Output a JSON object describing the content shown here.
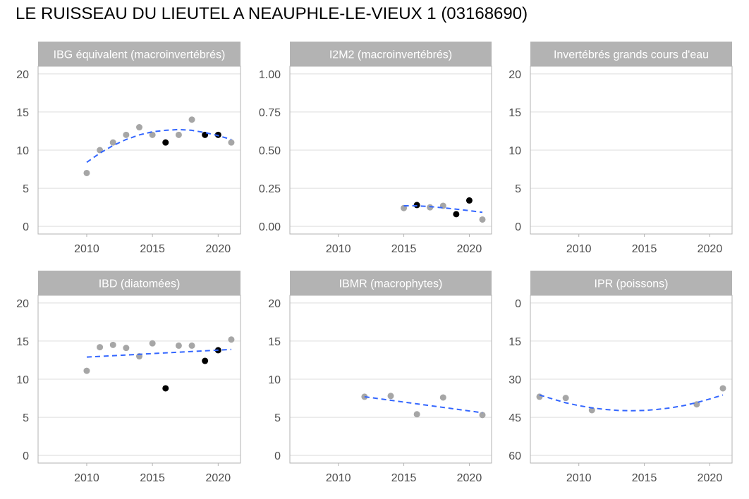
{
  "title": "LE RUISSEAU DU LIEUTEL A NEAUPHLE-LE-VIEUX 1 (03168690)",
  "colors": {
    "point_default": "#a6a6a6",
    "point_highlight": "#000000",
    "trend": "#3366ff",
    "strip": "#b3b3b3",
    "grid": "#dedede",
    "border": "#b3b3b3"
  },
  "chart_data": [
    {
      "type": "scatter",
      "title": "IBG équivalent (macroinvertébrés)",
      "xlim": [
        2006.3,
        2021.7
      ],
      "ylim": [
        -1,
        21
      ],
      "x_ticks": [
        2010,
        2015,
        2020
      ],
      "y_ticks": [
        0,
        5,
        10,
        15,
        20
      ],
      "y_tick_labels": [
        "0",
        "5",
        "10",
        "15",
        "20"
      ],
      "series": [
        {
          "role": "grey",
          "points": [
            [
              2010,
              7
            ],
            [
              2011,
              10
            ],
            [
              2012,
              11
            ],
            [
              2013,
              12
            ],
            [
              2014,
              13
            ],
            [
              2015,
              12
            ],
            [
              2017,
              12
            ],
            [
              2018,
              14
            ],
            [
              2021,
              11
            ]
          ]
        },
        {
          "role": "black",
          "points": [
            [
              2016,
              11
            ],
            [
              2019,
              12
            ],
            [
              2020,
              12
            ]
          ]
        }
      ],
      "trend": [
        [
          2010,
          8.4
        ],
        [
          2011,
          9.6
        ],
        [
          2012,
          10.6
        ],
        [
          2013,
          11.4
        ],
        [
          2014,
          12.0
        ],
        [
          2015,
          12.4
        ],
        [
          2016,
          12.6
        ],
        [
          2017,
          12.7
        ],
        [
          2018,
          12.6
        ],
        [
          2019,
          12.3
        ],
        [
          2020,
          11.9
        ],
        [
          2021,
          11.4
        ]
      ]
    },
    {
      "type": "scatter",
      "title": "I2M2 (macroinvertébrés)",
      "xlim": [
        2006.3,
        2021.7
      ],
      "ylim": [
        -0.05,
        1.05
      ],
      "x_ticks": [
        2010,
        2015,
        2020
      ],
      "y_ticks": [
        0,
        0.25,
        0.5,
        0.75,
        1
      ],
      "y_tick_labels": [
        "0.00",
        "0.25",
        "0.50",
        "0.75",
        "1.00"
      ],
      "series": [
        {
          "role": "grey",
          "points": [
            [
              2015,
              0.12
            ],
            [
              2017,
              0.125
            ],
            [
              2018,
              0.135
            ],
            [
              2021,
              0.045
            ]
          ]
        },
        {
          "role": "black",
          "points": [
            [
              2016,
              0.14
            ],
            [
              2019,
              0.08
            ],
            [
              2020,
              0.17
            ]
          ]
        }
      ],
      "trend": [
        [
          2015,
          0.135
        ],
        [
          2016,
          0.135
        ],
        [
          2017,
          0.13
        ],
        [
          2018,
          0.122
        ],
        [
          2019,
          0.113
        ],
        [
          2020,
          0.103
        ],
        [
          2021,
          0.092
        ]
      ]
    },
    {
      "type": "scatter",
      "title": "Invertébrés grands cours d'eau",
      "xlim": [
        2006.3,
        2021.7
      ],
      "ylim": [
        -1,
        21
      ],
      "x_ticks": [
        2010,
        2015,
        2020
      ],
      "y_ticks": [
        0,
        5,
        10,
        15,
        20
      ],
      "y_tick_labels": [
        "0",
        "5",
        "10",
        "15",
        "20"
      ],
      "series": [],
      "trend": []
    },
    {
      "type": "scatter",
      "title": "IBD (diatomées)",
      "xlim": [
        2006.3,
        2021.7
      ],
      "ylim": [
        -1,
        21
      ],
      "x_ticks": [
        2010,
        2015,
        2020
      ],
      "y_ticks": [
        0,
        5,
        10,
        15,
        20
      ],
      "y_tick_labels": [
        "0",
        "5",
        "10",
        "15",
        "20"
      ],
      "series": [
        {
          "role": "grey",
          "points": [
            [
              2010,
              11.1
            ],
            [
              2011,
              14.2
            ],
            [
              2012,
              14.5
            ],
            [
              2013,
              14.1
            ],
            [
              2014,
              13.0
            ],
            [
              2015,
              14.7
            ],
            [
              2017,
              14.4
            ],
            [
              2018,
              14.4
            ],
            [
              2021,
              15.2
            ]
          ]
        },
        {
          "role": "black",
          "points": [
            [
              2016,
              8.8
            ],
            [
              2019,
              12.4
            ],
            [
              2020,
              13.8
            ]
          ]
        }
      ],
      "trend": [
        [
          2010,
          12.9
        ],
        [
          2021,
          13.9
        ]
      ]
    },
    {
      "type": "scatter",
      "title": "IBMR (macrophytes)",
      "xlim": [
        2006.3,
        2021.7
      ],
      "ylim": [
        -1,
        21
      ],
      "x_ticks": [
        2010,
        2015,
        2020
      ],
      "y_ticks": [
        0,
        5,
        10,
        15,
        20
      ],
      "y_tick_labels": [
        "0",
        "5",
        "10",
        "15",
        "20"
      ],
      "series": [
        {
          "role": "grey",
          "points": [
            [
              2012,
              7.7
            ],
            [
              2014,
              7.8
            ],
            [
              2016,
              5.4
            ],
            [
              2018,
              7.6
            ],
            [
              2021,
              5.3
            ]
          ]
        }
      ],
      "trend": [
        [
          2012,
          7.7
        ],
        [
          2021,
          5.6
        ]
      ]
    },
    {
      "type": "scatter",
      "title": "IPR (poissons)",
      "xlim": [
        2006.3,
        2021.7
      ],
      "ylim": [
        -3,
        63
      ],
      "y_reversed": true,
      "x_ticks": [
        2010,
        2015,
        2020
      ],
      "y_ticks": [
        0,
        15,
        30,
        45,
        60
      ],
      "y_tick_labels": [
        "0",
        "15",
        "30",
        "45",
        "60"
      ],
      "series": [
        {
          "role": "grey",
          "points": [
            [
              2007,
              36.9
            ],
            [
              2009,
              37.4
            ],
            [
              2011,
              42.2
            ],
            [
              2019,
              39.9
            ],
            [
              2021,
              33.6
            ]
          ]
        }
      ],
      "trend": [
        [
          2007,
          36.2
        ],
        [
          2008,
          37.8
        ],
        [
          2009,
          39.3
        ],
        [
          2010,
          40.4
        ],
        [
          2011,
          41.3
        ],
        [
          2012,
          41.9
        ],
        [
          2013,
          42.3
        ],
        [
          2014,
          42.4
        ],
        [
          2015,
          42.3
        ],
        [
          2016,
          41.9
        ],
        [
          2017,
          41.3
        ],
        [
          2018,
          40.4
        ],
        [
          2019,
          39.2
        ],
        [
          2020,
          37.8
        ],
        [
          2021,
          36.2
        ]
      ]
    }
  ]
}
